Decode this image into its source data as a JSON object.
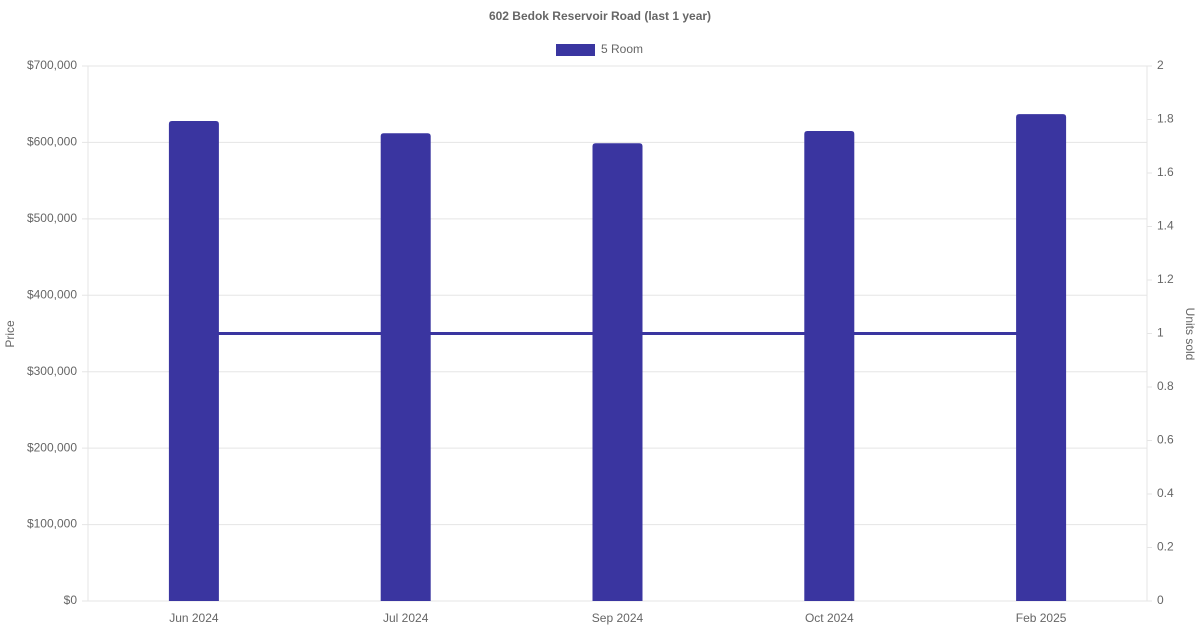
{
  "chart_data": {
    "type": "bar",
    "title": "602 Bedok Reservoir Road (last 1 year)",
    "y_label": "Price",
    "y2_label": "Units sold",
    "categories": [
      "Jun 2024",
      "Jul 2024",
      "Sep 2024",
      "Oct 2024",
      "Feb 2025"
    ],
    "series": [
      {
        "name": "5 Room",
        "type": "bar",
        "color": "#3a35a0",
        "values": [
          628000,
          612000,
          599000,
          615000,
          637000
        ]
      },
      {
        "type": "line",
        "axis": "y2",
        "color": "#3a35a0",
        "values": [
          1,
          1,
          1,
          1,
          1
        ]
      }
    ],
    "ylim": [
      0,
      700000
    ],
    "yticks": [
      {
        "value": 0,
        "label": "$0"
      },
      {
        "value": 100000,
        "label": "$100,000"
      },
      {
        "value": 200000,
        "label": "$200,000"
      },
      {
        "value": 300000,
        "label": "$300,000"
      },
      {
        "value": 400000,
        "label": "$400,000"
      },
      {
        "value": 500000,
        "label": "$500,000"
      },
      {
        "value": 600000,
        "label": "$600,000"
      },
      {
        "value": 700000,
        "label": "$700,000"
      }
    ],
    "y2lim": [
      0,
      2
    ],
    "y2ticks": [
      0,
      0.2,
      0.4,
      0.6,
      0.8,
      1,
      1.2,
      1.4,
      1.6,
      1.8,
      2
    ],
    "grid": true,
    "legend": "top"
  }
}
